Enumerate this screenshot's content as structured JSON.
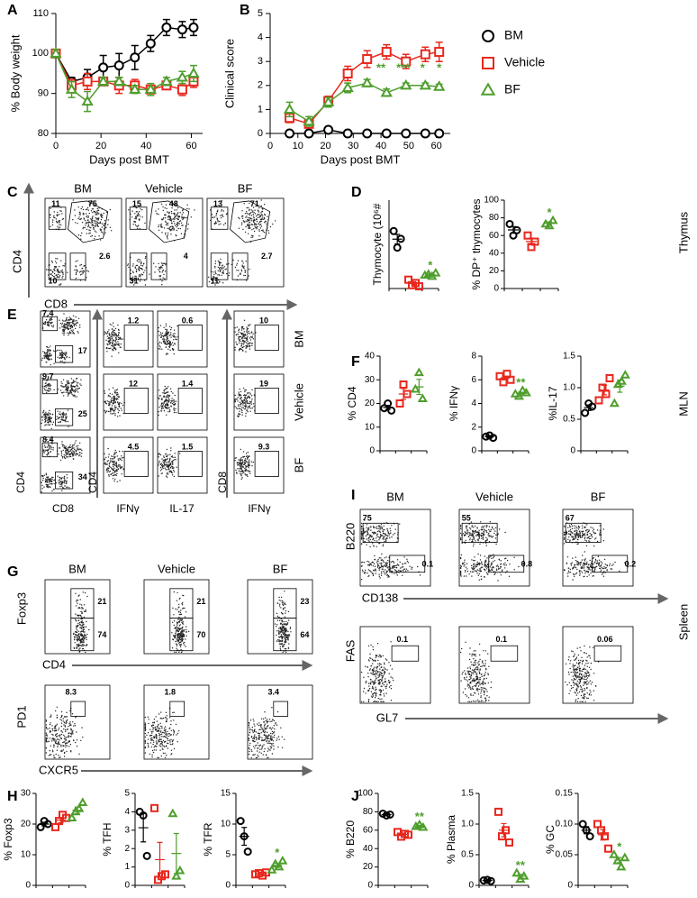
{
  "chart_data": [
    {
      "type": "line",
      "y_label": "% Body weight",
      "x_label": "Days post BMT",
      "x": [
        0,
        7,
        14,
        21,
        28,
        35,
        42,
        49,
        56,
        61
      ],
      "xlim": [
        0,
        65
      ],
      "xticks": [
        0,
        20,
        40,
        60
      ],
      "ylim": [
        80,
        110
      ],
      "yticks": [
        80,
        90,
        100,
        110
      ],
      "series": [
        {
          "color": "#000000",
          "values": [
            100,
            93,
            94,
            96.5,
            97,
            99,
            102.5,
            106.5,
            106,
            106.5
          ],
          "errors": [
            1,
            1,
            2,
            3,
            3,
            3,
            2,
            2,
            2,
            2
          ]
        },
        {
          "color": "#e8281e",
          "values": [
            100,
            92,
            93,
            93,
            92,
            92,
            91,
            92,
            91,
            93
          ],
          "errors": [
            1,
            1.5,
            2,
            1,
            2,
            1.5,
            1,
            1,
            1.5,
            1.5
          ]
        },
        {
          "color": "#4f9e2d",
          "values": [
            100,
            91,
            88,
            93,
            93,
            91,
            91,
            93,
            94,
            95
          ],
          "errors": [
            1,
            2,
            2.5,
            1,
            1,
            1,
            1.5,
            1,
            1.5,
            2
          ]
        }
      ]
    },
    {
      "type": "line",
      "y_label": "Clinical score",
      "x_label": "Days post BMT",
      "x": [
        7,
        14,
        21,
        28,
        35,
        42,
        49,
        56,
        61
      ],
      "xlim": [
        0,
        65
      ],
      "xticks": [
        0,
        10,
        20,
        30,
        40,
        50,
        60
      ],
      "ylim": [
        0,
        5
      ],
      "yticks": [
        0,
        1,
        2,
        3,
        4,
        5
      ],
      "series": [
        {
          "name": "BM",
          "color": "#000000",
          "values": [
            0,
            0,
            0.15,
            0,
            0,
            0,
            0,
            0,
            0
          ],
          "errors": [
            0,
            0,
            0.05,
            0,
            0,
            0,
            0,
            0,
            0
          ]
        },
        {
          "name": "Vehicle",
          "color": "#e8281e",
          "values": [
            0.65,
            0.4,
            1.35,
            2.5,
            3.1,
            3.4,
            3,
            3.3,
            3.4
          ],
          "errors": [
            0.2,
            0.15,
            0.2,
            0.3,
            0.35,
            0.3,
            0.3,
            0.3,
            0.4
          ]
        },
        {
          "name": "BF",
          "color": "#4f9e2d",
          "values": [
            1,
            0.5,
            1.3,
            1.9,
            2.1,
            1.7,
            2,
            2,
            1.95
          ],
          "errors": [
            0.3,
            0.2,
            0.2,
            0.2,
            0.15,
            0.15,
            0.1,
            0.1,
            0.1
          ]
        }
      ],
      "annotations": [
        {
          "x": 40,
          "text": "**"
        },
        {
          "x": 48,
          "text": "***"
        },
        {
          "x": 55,
          "text": "*"
        },
        {
          "x": 61,
          "text": "*"
        }
      ]
    },
    {
      "type": "dot",
      "y_label": "Thymocyte (10⁶#",
      "ylim": [
        0,
        80
      ],
      "series": [
        {
          "color": "#000000",
          "values": [
            52,
            37,
            45
          ]
        },
        {
          "color": "#e8281e",
          "values": [
            8,
            3,
            5,
            2
          ]
        },
        {
          "color": "#4f9e2d",
          "values": [
            12,
            13,
            11,
            14
          ],
          "annotation": "*"
        }
      ]
    },
    {
      "type": "dot",
      "y_label": "% DP⁺ thymocytes",
      "ylim": [
        0,
        100
      ],
      "yticks": [
        0,
        20,
        40,
        60,
        80,
        100
      ],
      "series": [
        {
          "color": "#000000",
          "values": [
            73,
            60,
            66
          ]
        },
        {
          "color": "#e8281e",
          "values": [
            60,
            47,
            53
          ]
        },
        {
          "color": "#4f9e2d",
          "values": [
            73,
            71,
            77
          ],
          "annotation": "*"
        }
      ]
    },
    {
      "type": "dot",
      "y_label": "% CD4",
      "ylim": [
        0,
        40
      ],
      "yticks": [
        0,
        10,
        20,
        30,
        40
      ],
      "series": [
        {
          "color": "#000000",
          "values": [
            18,
            20,
            17
          ]
        },
        {
          "color": "#e8281e",
          "values": [
            20,
            28,
            24
          ]
        },
        {
          "color": "#4f9e2d",
          "values": [
            26,
            33,
            22
          ]
        }
      ]
    },
    {
      "type": "dot",
      "y_label": "% IFNγ",
      "ylim": [
        0,
        8
      ],
      "yticks": [
        0,
        2,
        4,
        6,
        8
      ],
      "series": [
        {
          "color": "#000000",
          "values": [
            1.2,
            1.3,
            1.1
          ]
        },
        {
          "color": "#e8281e",
          "values": [
            6.3,
            5.8,
            6.5,
            6
          ]
        },
        {
          "color": "#4f9e2d",
          "values": [
            4.8,
            4.6,
            5.1,
            4.9
          ],
          "annotation": "**"
        }
      ]
    },
    {
      "type": "dot",
      "y_label": "%IL-17",
      "ylim": [
        0,
        1.5
      ],
      "yticks": [
        0,
        {
          "value": 0.5,
          "label": "0.5"
        },
        {
          "value": 1,
          "label": "1.0"
        },
        1.5
      ],
      "series": [
        {
          "color": "#000000",
          "values": [
            0.6,
            0.75,
            0.7
          ]
        },
        {
          "color": "#e8281e",
          "values": [
            0.8,
            1,
            0.9,
            1.15
          ]
        },
        {
          "color": "#4f9e2d",
          "values": [
            0.75,
            1.05,
            1.1,
            1.2
          ]
        }
      ]
    },
    {
      "type": "dot",
      "y_label": "% Foxp3",
      "ylim": [
        0,
        30
      ],
      "yticks": [
        0,
        10,
        20,
        30
      ],
      "series": [
        {
          "color": "#000000",
          "values": [
            19,
            21,
            20
          ]
        },
        {
          "color": "#e8281e",
          "values": [
            19,
            21,
            23,
            22
          ]
        },
        {
          "color": "#4f9e2d",
          "values": [
            22,
            24,
            25,
            27
          ]
        }
      ]
    },
    {
      "type": "dot",
      "y_label": "% TFH",
      "ylim": [
        0,
        5
      ],
      "yticks": [
        0,
        1,
        2,
        3,
        4,
        5
      ],
      "series": [
        {
          "color": "#000000",
          "values": [
            4,
            3.8,
            1.6
          ]
        },
        {
          "color": "#e8281e",
          "values": [
            4.2,
            0.3,
            0.5,
            0.6
          ]
        },
        {
          "color": "#4f9e2d",
          "values": [
            3.9,
            0.5,
            0.8
          ]
        }
      ]
    },
    {
      "type": "dot",
      "y_label": "% TFR",
      "ylim": [
        0,
        15
      ],
      "yticks": [
        0,
        5,
        10,
        15
      ],
      "series": [
        {
          "color": "#000000",
          "values": [
            10.5,
            8,
            5.5
          ]
        },
        {
          "color": "#e8281e",
          "values": [
            1.8,
            2,
            1.6,
            2.1
          ]
        },
        {
          "color": "#4f9e2d",
          "values": [
            2.5,
            3.5,
            3,
            4
          ],
          "annotation": "*"
        }
      ]
    },
    {
      "type": "dot",
      "y_label": "% B220",
      "ylim": [
        0,
        100
      ],
      "yticks": [
        0,
        20,
        40,
        60,
        80,
        100
      ],
      "series": [
        {
          "color": "#000000",
          "values": [
            78,
            76,
            77
          ]
        },
        {
          "color": "#e8281e",
          "values": [
            58,
            53,
            56,
            55
          ]
        },
        {
          "color": "#4f9e2d",
          "values": [
            64,
            66,
            63
          ],
          "annotation": "**"
        }
      ]
    },
    {
      "type": "dot",
      "y_label": "% Plasma",
      "ylim": [
        0,
        1.5
      ],
      "yticks": [
        0,
        {
          "value": 0.5,
          "label": "0.5"
        },
        {
          "value": 1,
          "label": "1.0"
        },
        1.5
      ],
      "series": [
        {
          "color": "#000000",
          "values": [
            0.08,
            0.09,
            0.07
          ]
        },
        {
          "color": "#e8281e",
          "values": [
            1.2,
            0.8,
            0.9,
            0.7
          ]
        },
        {
          "color": "#4f9e2d",
          "values": [
            0.2,
            0.1,
            0.15
          ],
          "annotation": "**"
        }
      ]
    },
    {
      "type": "dot",
      "y_label": "% GC",
      "ylim": [
        0,
        0.15
      ],
      "yticks": [
        0,
        0.05,
        {
          "value": 0.1,
          "label": "0.10"
        },
        0.15
      ],
      "series": [
        {
          "color": "#000000",
          "values": [
            0.1,
            0.09,
            0.08
          ]
        },
        {
          "color": "#e8281e",
          "values": [
            0.1,
            0.09,
            0.08,
            0.06
          ]
        },
        {
          "color": "#4f9e2d",
          "values": [
            0.05,
            0.04,
            0.03,
            0.045
          ],
          "annotation": "*"
        }
      ]
    }
  ],
  "panel_labels": [
    "A",
    "B",
    "C",
    "D",
    "E",
    "F",
    "G",
    "H",
    "I",
    "J"
  ],
  "side_labels": [
    "Thymus",
    "MLN",
    "Spleen"
  ],
  "flow_C": {
    "titles": [
      "BM",
      "Vehicle",
      "BF"
    ],
    "x_label": "CD8",
    "y_label": "CD4",
    "gates": [
      [
        "11",
        "75",
        "10",
        "2.6"
      ],
      [
        "15",
        "48",
        "31",
        "4"
      ],
      [
        "13",
        "71",
        "11",
        "2.7"
      ]
    ]
  },
  "flow_E": {
    "row_labels": [
      "BM",
      "Vehicle",
      "BF"
    ],
    "x_labels": [
      "CD8",
      "IFNγ",
      "IL-17",
      "IFNγ"
    ],
    "y_labels": [
      "CD4",
      "CD4",
      "CD8"
    ],
    "gates": [
      [
        [
          "7.4",
          "17"
        ],
        [
          "1.2"
        ],
        [
          "0.6"
        ],
        [
          "10"
        ]
      ],
      [
        [
          "9.7",
          "25"
        ],
        [
          "12"
        ],
        [
          "1.4"
        ],
        [
          "19"
        ]
      ],
      [
        [
          "8.4",
          "34"
        ],
        [
          "4.5"
        ],
        [
          "1.5"
        ],
        [
          "9.3"
        ]
      ]
    ]
  },
  "flow_G": {
    "titles": [
      "BM",
      "Vehicle",
      "BF"
    ],
    "top": {
      "x_label": "CD4",
      "y_label": "Foxp3",
      "gates": [
        [
          "21",
          "74"
        ],
        [
          "21",
          "70"
        ],
        [
          "23",
          "64"
        ]
      ]
    },
    "bottom": {
      "x_label": "CXCR5",
      "y_label": "PD1",
      "gates": [
        [
          "8.3"
        ],
        [
          "1.8"
        ],
        [
          "3.4"
        ]
      ]
    }
  },
  "flow_I": {
    "titles": [
      "BM",
      "Vehicle",
      "BF"
    ],
    "top": {
      "x_label": "CD138",
      "y_label": "B220",
      "gates": [
        [
          "75",
          "0.1"
        ],
        [
          "55",
          "0.8"
        ],
        [
          "67",
          "0.2"
        ]
      ]
    },
    "bottom": {
      "x_label": "GL7",
      "y_label": "FAS",
      "gates": [
        [
          "0.1"
        ],
        [
          "0.1"
        ],
        [
          "0.06"
        ]
      ]
    }
  }
}
